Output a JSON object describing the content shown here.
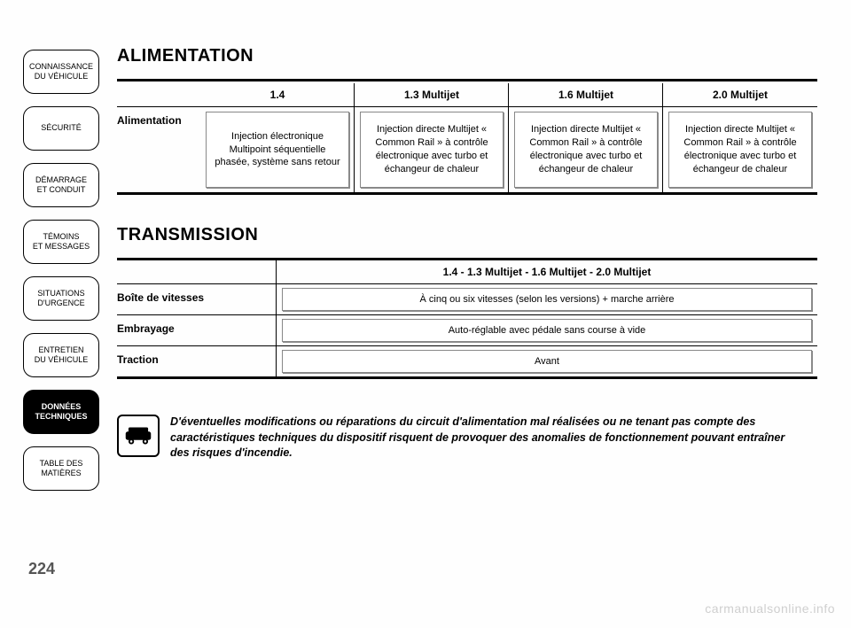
{
  "page_number": "224",
  "sidebar": {
    "items": [
      {
        "label": "CONNAISSANCE\nDU VÉHICULE",
        "active": false
      },
      {
        "label": "SÉCURITÉ",
        "active": false
      },
      {
        "label": "DÉMARRAGE\nET CONDUIT",
        "active": false
      },
      {
        "label": "TÉMOINS\nET MESSAGES",
        "active": false
      },
      {
        "label": "SITUATIONS\nD'URGENCE",
        "active": false
      },
      {
        "label": "ENTRETIEN\nDU VÉHICULE",
        "active": false
      },
      {
        "label": "DONNÉES\nTECHNIQUES",
        "active": true
      },
      {
        "label": "TABLE DES\nMATIÈRES",
        "active": false
      }
    ]
  },
  "alimentation": {
    "title": "ALIMENTATION",
    "row_label": "Alimentation",
    "columns": [
      "1.4",
      "1.3 Multijet",
      "1.6 Multijet",
      "2.0 Multijet"
    ],
    "cells": [
      "Injection électronique Multipoint séquentielle phasée, système sans retour",
      "Injection directe Multijet « Common Rail » à contrôle électronique avec turbo et échangeur de chaleur",
      "Injection directe Multijet « Common Rail » à contrôle électronique avec turbo et échangeur de chaleur",
      "Injection directe Multijet « Common Rail » à contrôle électronique avec turbo et échangeur de chaleur"
    ],
    "title_fontsize": 20,
    "header_fontsize": 12,
    "cell_fontsize": 11,
    "box_border_color": "#888888",
    "box_shadow_color": "rgba(0,0,0,0.45)",
    "rule_color": "#000000"
  },
  "transmission": {
    "title": "TRANSMISSION",
    "column_header": "1.4 - 1.3 Multijet - 1.6 Multijet - 2.0 Multijet",
    "rows": [
      {
        "label": "Boîte de vitesses",
        "value": "À cinq ou six vitesses (selon les versions) + marche arrière"
      },
      {
        "label": "Embrayage",
        "value": "Auto-réglable avec pédale sans course à vide"
      },
      {
        "label": "Traction",
        "value": "Avant"
      }
    ],
    "title_fontsize": 20,
    "header_fontsize": 12,
    "cell_fontsize": 11,
    "box_border_color": "#888888",
    "rule_color": "#000000"
  },
  "warning": {
    "icon": "car-warning-icon",
    "text": "D'éventuelles modifications ou réparations du circuit d'alimentation mal réalisées ou ne tenant pas compte des caractéristiques techniques du dispositif risquent de provoquer des anomalies de fonctionnement pouvant entraîner des risques d'incendie.",
    "fontsize": 12.5,
    "font_style": "italic bold"
  },
  "watermark": "carmanualsonline.info",
  "colors": {
    "page_bg": "#ffffff",
    "text": "#000000",
    "tab_bg": "#ffffff",
    "tab_active_bg": "#000000",
    "tab_active_text": "#ffffff",
    "watermark": "#cfcfcf"
  }
}
